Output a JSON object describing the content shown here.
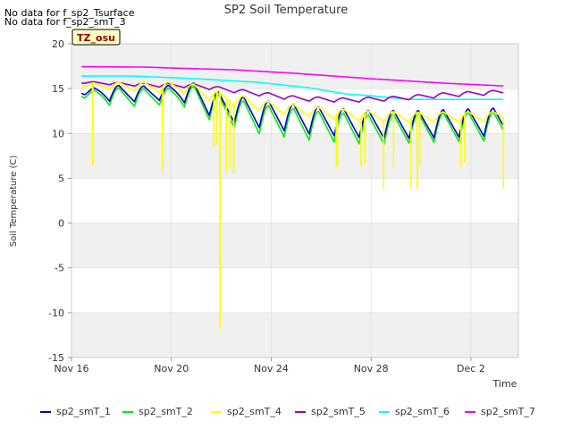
{
  "notes": [
    "No data for f_sp2_Tsurface",
    "No data for f_sp2_smT_3"
  ],
  "site_badge": "TZ_osu",
  "colors": {
    "background_band": "#f0f0f0",
    "grid": "#dcdcdc",
    "axis": "#cccccc",
    "badge_fill": "#ffffc0",
    "badge_text": "#990000"
  },
  "chart_data": {
    "type": "line",
    "title": "SP2 Soil Temperature",
    "xlabel": "Time",
    "ylabel": "Soil Temperature (C)",
    "xlim": [
      "Nov 16",
      "Dec 3.5"
    ],
    "xlim_days": [
      0,
      17.9
    ],
    "ylim": [
      -15,
      20
    ],
    "x_ticks": [
      {
        "label": "Nov 16",
        "day": 0
      },
      {
        "label": "Nov 20",
        "day": 4
      },
      {
        "label": "Nov 24",
        "day": 8
      },
      {
        "label": "Nov 28",
        "day": 12
      },
      {
        "label": "Dec 2",
        "day": 16
      }
    ],
    "y_ticks": [
      -15,
      -10,
      -5,
      0,
      5,
      10,
      15,
      20
    ],
    "grid": true,
    "legend_position": "bottom",
    "series": [
      {
        "name": "sp2_smT_1",
        "color": "#0000cc",
        "x_start": 0.4,
        "x_end": 17.3,
        "base": [
          [
            0.4,
            14.6
          ],
          [
            2.5,
            14.4
          ],
          [
            4.5,
            14.6
          ],
          [
            6.0,
            13.0
          ],
          [
            7.5,
            12.2
          ],
          [
            9.5,
            11.5
          ],
          [
            12.0,
            11.0
          ],
          [
            14.0,
            11.0
          ],
          [
            17.3,
            11.3
          ]
        ],
        "amp": [
          [
            0.4,
            0.4
          ],
          [
            1.5,
            1.8
          ],
          [
            4.0,
            1.6
          ],
          [
            5.0,
            3.0
          ],
          [
            9.0,
            3.1
          ],
          [
            17.3,
            3.1
          ]
        ],
        "spikes": []
      },
      {
        "name": "sp2_smT_2",
        "color": "#00ee00",
        "x_start": 0.4,
        "x_end": 17.3,
        "base": [
          [
            0.4,
            14.3
          ],
          [
            2.5,
            14.0
          ],
          [
            4.5,
            14.2
          ],
          [
            6.0,
            12.6
          ],
          [
            7.5,
            11.6
          ],
          [
            9.5,
            10.9
          ],
          [
            12.0,
            10.4
          ],
          [
            14.0,
            10.6
          ],
          [
            17.3,
            10.8
          ]
        ],
        "amp": [
          [
            0.4,
            0.5
          ],
          [
            1.5,
            2.0
          ],
          [
            4.0,
            1.8
          ],
          [
            5.0,
            3.1
          ],
          [
            9.0,
            3.3
          ],
          [
            17.3,
            3.2
          ]
        ],
        "spikes": []
      },
      {
        "name": "sp2_smT_4",
        "color": "#ffff00",
        "x_start": 0.4,
        "x_end": 17.3,
        "base": [
          [
            0.4,
            15.4
          ],
          [
            2.5,
            15.2
          ],
          [
            4.5,
            15.1
          ],
          [
            6.0,
            14.0
          ],
          [
            8.0,
            12.9
          ],
          [
            10.0,
            12.3
          ],
          [
            12.0,
            11.9
          ],
          [
            14.0,
            11.8
          ],
          [
            17.3,
            11.9
          ]
        ],
        "amp": [
          [
            0.4,
            0.4
          ],
          [
            2.0,
            0.9
          ],
          [
            5.0,
            1.4
          ],
          [
            8.0,
            1.2
          ],
          [
            17.3,
            1.1
          ]
        ],
        "spikes": [
          [
            0.85,
            6.5
          ],
          [
            3.65,
            6.0
          ],
          [
            5.7,
            8.6
          ],
          [
            5.83,
            8.8
          ],
          [
            5.95,
            -11.7
          ],
          [
            6.2,
            5.8
          ],
          [
            6.35,
            6.0
          ],
          [
            6.5,
            5.5
          ],
          [
            10.6,
            6.2
          ],
          [
            10.65,
            6.4
          ],
          [
            11.6,
            6.4
          ],
          [
            11.75,
            6.6
          ],
          [
            12.5,
            3.9
          ],
          [
            12.9,
            6.2
          ],
          [
            13.6,
            4.0
          ],
          [
            13.85,
            3.8
          ],
          [
            13.95,
            6.3
          ],
          [
            15.6,
            6.3
          ],
          [
            15.75,
            6.8
          ],
          [
            17.3,
            3.9
          ]
        ]
      },
      {
        "name": "sp2_smT_5",
        "color": "#9900cc",
        "x_start": 0.4,
        "x_end": 17.3,
        "base": [
          [
            0.4,
            15.7
          ],
          [
            3.0,
            15.4
          ],
          [
            5.0,
            15.3
          ],
          [
            7.0,
            14.6
          ],
          [
            9.0,
            13.9
          ],
          [
            11.0,
            13.7
          ],
          [
            13.0,
            13.9
          ],
          [
            15.0,
            14.3
          ],
          [
            17.3,
            14.6
          ]
        ],
        "amp": [
          [
            0.4,
            0.2
          ],
          [
            3.0,
            0.4
          ],
          [
            9.0,
            0.5
          ],
          [
            17.3,
            0.5
          ]
        ],
        "spikes": []
      },
      {
        "name": "sp2_smT_6",
        "color": "#00ffff",
        "x_start": 0.4,
        "x_end": 17.3,
        "base": [
          [
            0.4,
            16.4
          ],
          [
            2.5,
            16.4
          ],
          [
            5.0,
            16.1
          ],
          [
            7.5,
            15.7
          ],
          [
            9.5,
            15.1
          ],
          [
            11.0,
            14.4
          ],
          [
            12.0,
            14.2
          ],
          [
            13.5,
            13.8
          ],
          [
            17.3,
            13.8
          ]
        ],
        "amp": [
          [
            0.4,
            0.0
          ],
          [
            17.3,
            0.0
          ]
        ],
        "spikes": []
      },
      {
        "name": "sp2_smT_7",
        "color": "#ff00ff",
        "x_start": 0.4,
        "x_end": 17.3,
        "base": [
          [
            0.4,
            17.45
          ],
          [
            3.0,
            17.4
          ],
          [
            4.0,
            17.3
          ],
          [
            6.5,
            17.1
          ],
          [
            9.0,
            16.7
          ],
          [
            12.0,
            16.1
          ],
          [
            15.0,
            15.6
          ],
          [
            17.3,
            15.3
          ]
        ],
        "amp": [
          [
            0.4,
            0.0
          ],
          [
            17.3,
            0.0
          ]
        ],
        "spikes": []
      }
    ]
  }
}
